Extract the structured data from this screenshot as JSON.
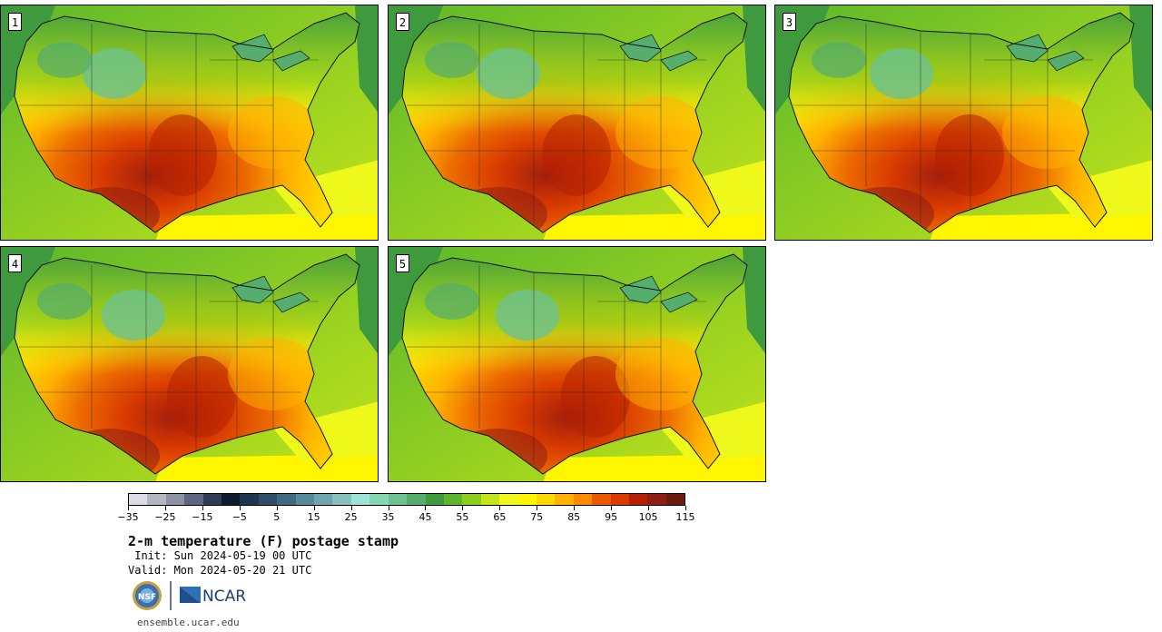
{
  "panels": [
    {
      "label": "1",
      "variant": 0
    },
    {
      "label": "2",
      "variant": 1
    },
    {
      "label": "3",
      "variant": 2
    },
    {
      "label": "4",
      "variant": 3
    },
    {
      "label": "5",
      "variant": 4
    }
  ],
  "colorbar": {
    "ticks": [
      "−35",
      "−25",
      "−15",
      "−5",
      "5",
      "15",
      "25",
      "35",
      "45",
      "55",
      "65",
      "75",
      "85",
      "95",
      "105",
      "115"
    ],
    "colors": [
      "#dcdce6",
      "#b4b6c4",
      "#8e91a3",
      "#5e6580",
      "#2f3a55",
      "#0e1a2e",
      "#1f3550",
      "#2f4c68",
      "#3f6a80",
      "#578a99",
      "#6fa6ae",
      "#86c0bf",
      "#9ee2d8",
      "#86d6b4",
      "#6dc291",
      "#55ad6e",
      "#3f9a3e",
      "#5cb82a",
      "#8ccc1a",
      "#c4e41a",
      "#eef81a",
      "#fff600",
      "#ffd800",
      "#ffb200",
      "#ff8a00",
      "#ec5a00",
      "#d83a00",
      "#b42000",
      "#8e1d14",
      "#6a1c0e"
    ]
  },
  "title": "2-m temperature (F) postage stamp",
  "init": " Init: Sun 2024-05-19 00 UTC",
  "valid": "Valid: Mon 2024-05-20 21 UTC",
  "logo_nsf": "NSF",
  "logo_ncar": "NCAR",
  "website": "ensemble.ucar.edu"
}
